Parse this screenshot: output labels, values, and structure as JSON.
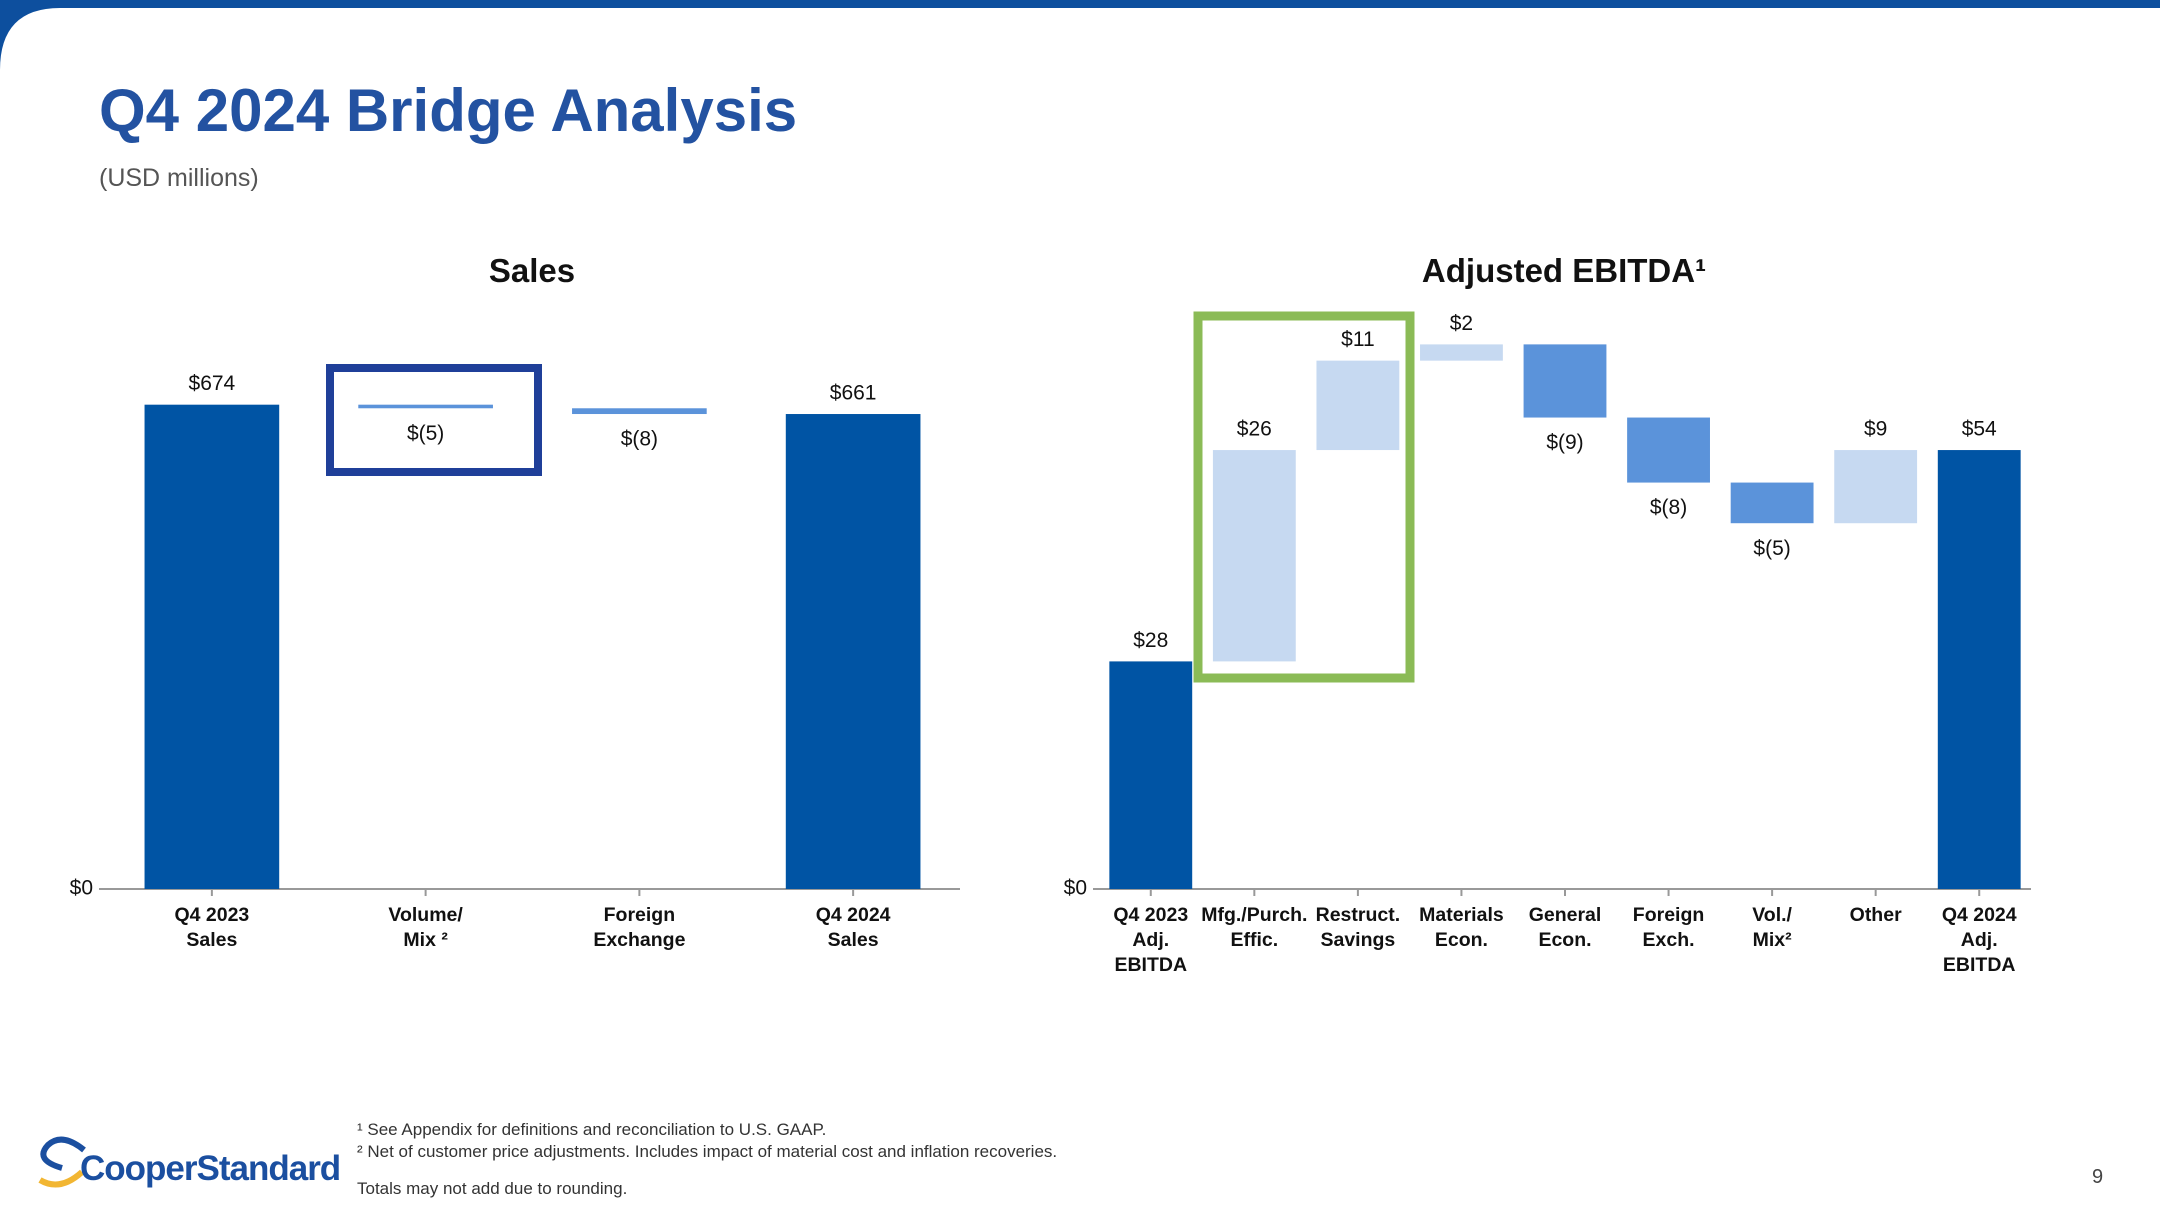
{
  "title": "Q4 2024 Bridge Analysis",
  "subtitle": "(USD millions)",
  "footnotes": [
    "¹ See Appendix for definitions and reconciliation to U.S. GAAP.",
    "² Net of customer price adjustments. Includes impact of material cost and inflation recoveries.",
    "Totals may not add due to rounding."
  ],
  "logo": "CooperStandard",
  "page_number": 9,
  "chart_data": [
    {
      "type": "waterfall",
      "title": "Sales",
      "categories": [
        "Q4 2023\nSales",
        "Volume/\nMix ²",
        "Foreign\nExchange",
        "Q4 2024\nSales"
      ],
      "values": [
        674,
        -5,
        -8,
        661
      ],
      "value_labels": [
        "$674",
        "$(5)",
        "$(8)",
        "$661"
      ],
      "colors": {
        "total": "#0054a4",
        "increase": "#c6d9f1",
        "decrease": "#5b93da"
      },
      "ylim": [
        0,
        700
      ],
      "yticks": [
        {
          "value": 0,
          "label": "$0"
        }
      ]
    },
    {
      "type": "waterfall",
      "title": "Adjusted EBITDA¹",
      "categories": [
        "Q4 2023\nAdj.\nEBITDA",
        "Mfg./Purch.\nEffic.",
        "Restruct.\nSavings",
        "Materials\nEcon.",
        "General\nEcon.",
        "Foreign\nExch.",
        "Vol./\nMix²",
        "Other",
        "Q4 2024\nAdj.\nEBITDA"
      ],
      "values": [
        28,
        26,
        11,
        2,
        -9,
        -8,
        -5,
        9,
        54
      ],
      "value_labels": [
        "$28",
        "$26",
        "$11",
        "$2",
        "$(9)",
        "$(8)",
        "$(5)",
        "$9",
        "$54"
      ],
      "colors": {
        "total": "#0054a4",
        "increase": "#c6d9f1",
        "decrease": "#5b93da"
      },
      "ylim": [
        0,
        70
      ],
      "yticks": [
        {
          "value": 0,
          "label": "$0"
        }
      ]
    }
  ]
}
